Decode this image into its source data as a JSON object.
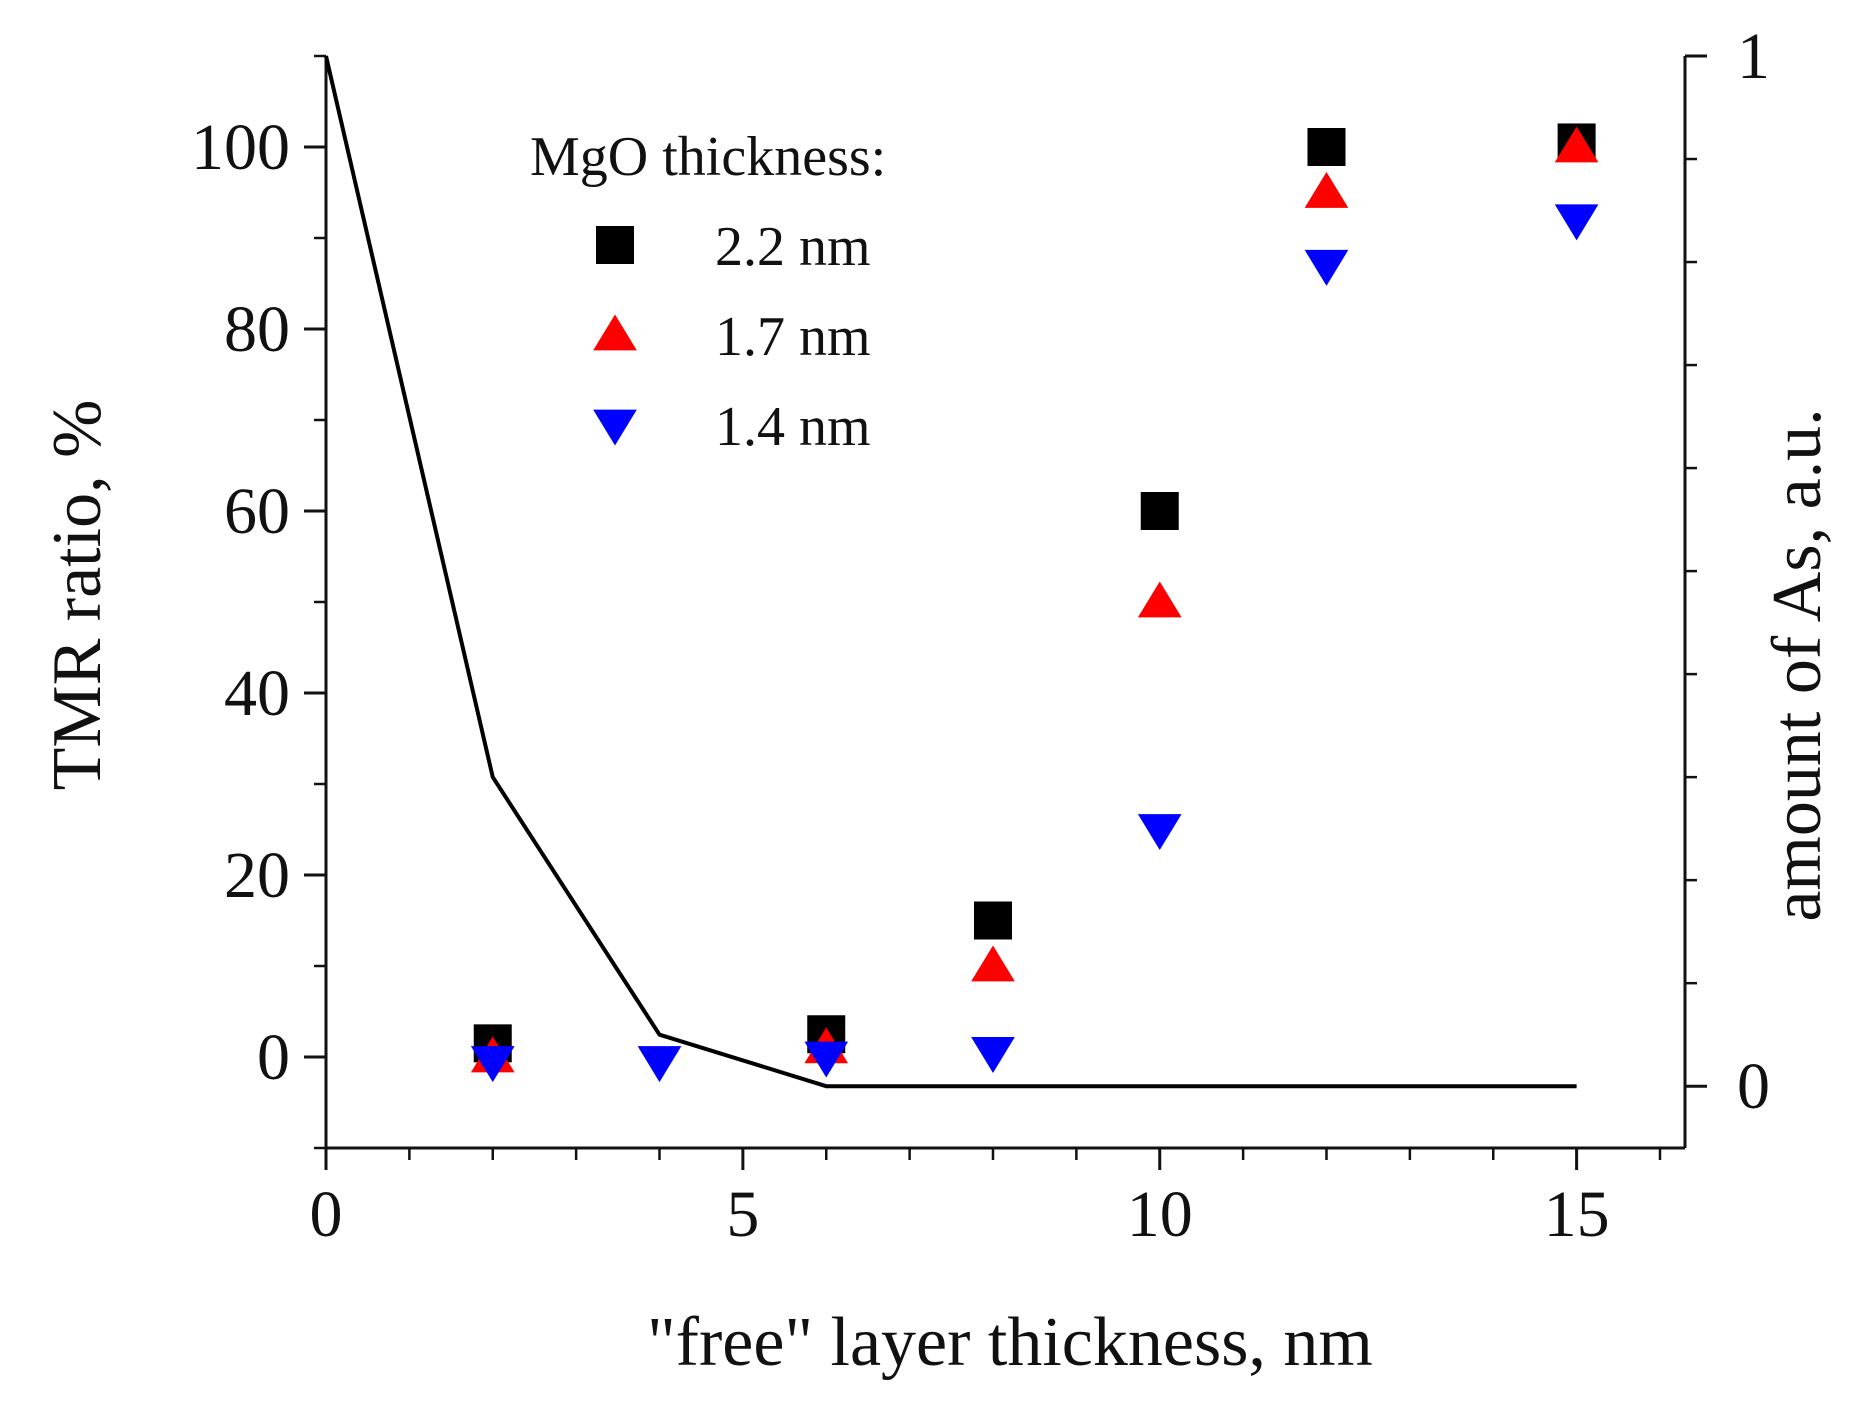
{
  "chart_data": {
    "type": "scatter",
    "title": "",
    "xlabel": "\"free\" layer thickness, nm",
    "ylabel": "TMR ratio, %",
    "y2label": "amount of As, a.u.",
    "xlim": [
      0,
      16.3
    ],
    "ylim": [
      -10,
      110
    ],
    "y2lim": [
      -0.06,
      1.0
    ],
    "xticks": [
      0,
      5,
      10,
      15
    ],
    "yticks": [
      0,
      20,
      40,
      60,
      80,
      100
    ],
    "y2ticks": [
      0,
      1
    ],
    "legend": {
      "title": "MgO thickness:",
      "placement": "top-left"
    },
    "series": [
      {
        "name": "2.2 nm",
        "marker": "square",
        "color": "#000000",
        "x": [
          2,
          6,
          8,
          10,
          12,
          15
        ],
        "y": [
          1.5,
          2.5,
          15,
          60,
          100,
          100.5
        ]
      },
      {
        "name": "1.7 nm",
        "marker": "triangle-up",
        "color": "#ff0000",
        "x": [
          2,
          6,
          8,
          10,
          12,
          15
        ],
        "y": [
          0,
          1,
          10,
          50,
          95,
          100
        ]
      },
      {
        "name": "1.4 nm",
        "marker": "triangle-down",
        "color": "#0000ff",
        "x": [
          2,
          4,
          6,
          8,
          10,
          12,
          15
        ],
        "y": [
          -0.5,
          -0.5,
          0,
          0.5,
          25,
          87,
          92
        ]
      }
    ],
    "line": {
      "name": "amount of As",
      "axis": "right",
      "color": "#000000",
      "x": [
        0,
        2,
        4,
        6,
        15
      ],
      "y": [
        1.0,
        0.3,
        0.05,
        0.0,
        0.0
      ]
    }
  }
}
